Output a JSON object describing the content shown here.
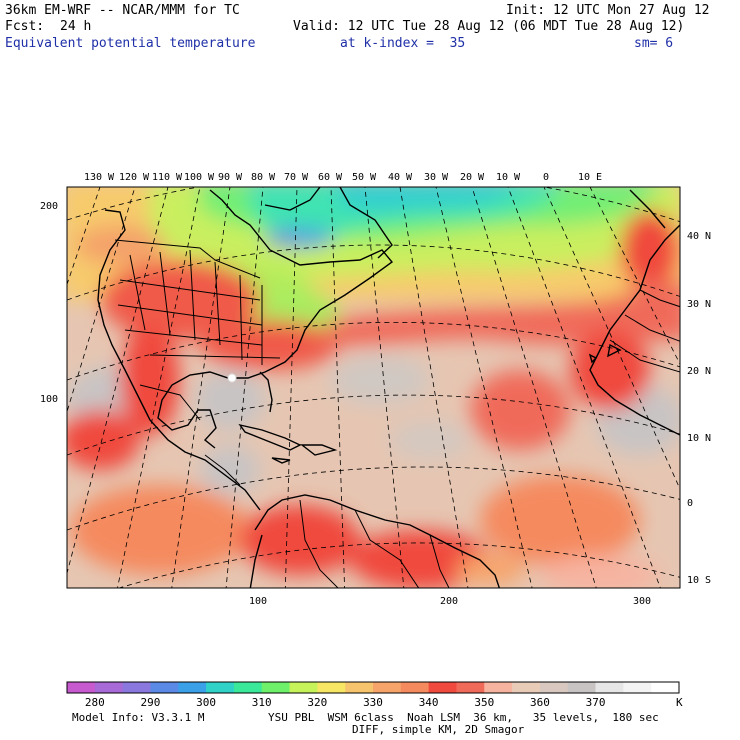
{
  "header": {
    "model_title": "36km EM-WRF -- NCAR/MMM for TC",
    "init": "Init: 12 UTC Mon 27 Aug 12",
    "fcst_label": "Fcst:",
    "fcst_value": "24 h",
    "valid": "Valid: 12 UTC Tue 28 Aug 12 (06 MDT Tue 28 Aug 12)",
    "field_name": "Equivalent potential temperature",
    "level": "at k-index =  35",
    "smoothing": "sm= 6"
  },
  "map": {
    "longitude_labels": [
      "130 W",
      "120 W",
      "110 W",
      "100 W",
      "90 W",
      "80 W",
      "70 W",
      "60 W",
      "50 W",
      "40 W",
      "30 W",
      "20 W",
      "10 W",
      "0",
      "10 E"
    ],
    "latitude_labels": [
      "40 N",
      "30 N",
      "20 N",
      "10 N",
      "0",
      "10 S"
    ],
    "grid_y_labels": [
      "200",
      "100"
    ],
    "grid_x_labels": [
      "100",
      "200",
      "300"
    ],
    "marker": "white dot near Gulf coast"
  },
  "colorbar": {
    "colors": [
      "#c85ad0",
      "#a86ad6",
      "#8a78de",
      "#5a8ae6",
      "#3aa0e8",
      "#30d2c8",
      "#3ae89a",
      "#6ef06a",
      "#c6f25a",
      "#f6e664",
      "#f7c46e",
      "#f7a46a",
      "#f58a5e",
      "#f04a3e",
      "#f06a5a",
      "#f6b4a0",
      "#e8ccb8",
      "#d8c8c0",
      "#c8c4c4",
      "#e6e6e6",
      "#f4f4f4",
      "#ffffff"
    ],
    "labels": [
      "280",
      "290",
      "300",
      "310",
      "320",
      "330",
      "340",
      "350",
      "360",
      "370"
    ],
    "unit": "K"
  },
  "footer": {
    "model_info": "Model Info: V3.3.1 M",
    "physics": "YSU PBL  WSM 6class  Noah LSM  36 km,   35 levels,  180 sec",
    "diff": "DIFF, simple KM, 2D Smagor"
  }
}
